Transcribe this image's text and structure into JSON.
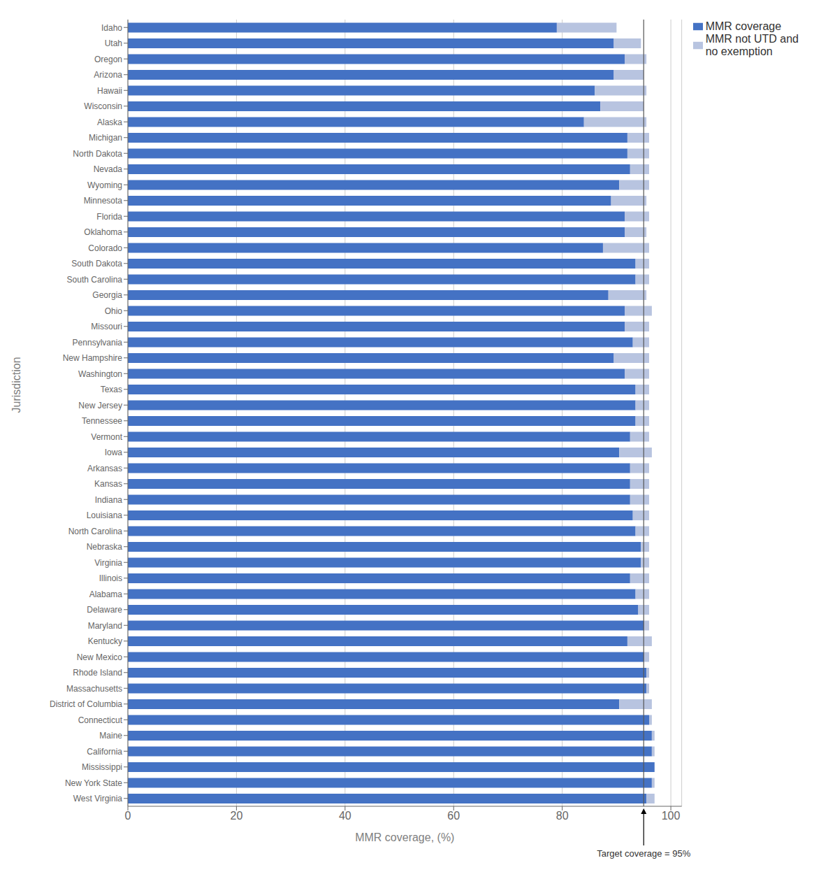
{
  "chart_data": {
    "type": "bar",
    "orientation": "horizontal",
    "stacked": true,
    "categories": [
      "Idaho",
      "Utah",
      "Oregon",
      "Arizona",
      "Hawaii",
      "Wisconsin",
      "Alaska",
      "Michigan",
      "North Dakota",
      "Nevada",
      "Wyoming",
      "Minnesota",
      "Florida",
      "Oklahoma",
      "Colorado",
      "South Dakota",
      "South Carolina",
      "Georgia",
      "Ohio",
      "Missouri",
      "Pennsylvania",
      "New Hampshire",
      "Washington",
      "Texas",
      "New Jersey",
      "Tennessee",
      "Vermont",
      "Iowa",
      "Arkansas",
      "Kansas",
      "Indiana",
      "Louisiana",
      "North Carolina",
      "Nebraska",
      "Virginia",
      "Illinois",
      "Alabama",
      "Delaware",
      "Maryland",
      "Kentucky",
      "New Mexico",
      "Rhode Island",
      "Massachusetts",
      "District of Columbia",
      "Connecticut",
      "Maine",
      "California",
      "Mississippi",
      "New York State",
      "West Virginia"
    ],
    "series": [
      {
        "name": "MMR coverage",
        "color": "#4472c4",
        "values": [
          79.0,
          89.5,
          91.5,
          89.5,
          86.0,
          87.0,
          84.0,
          92.0,
          92.0,
          92.5,
          90.5,
          89.0,
          91.5,
          91.5,
          87.5,
          93.5,
          93.5,
          88.5,
          91.5,
          91.5,
          93.0,
          89.5,
          91.5,
          93.5,
          93.5,
          93.5,
          92.5,
          90.5,
          92.5,
          92.5,
          92.5,
          93.0,
          93.5,
          94.5,
          94.5,
          92.5,
          93.5,
          94.0,
          95.0,
          92.0,
          95.0,
          95.5,
          95.5,
          90.5,
          96.0,
          96.5,
          96.5,
          97.0,
          96.5,
          95.5
        ]
      },
      {
        "name": "MMR not UTD and\nno exemption",
        "color": "#b8c4e0",
        "values": [
          11.0,
          5.0,
          4.0,
          5.5,
          9.5,
          8.0,
          11.5,
          4.0,
          4.0,
          3.5,
          5.5,
          6.5,
          4.5,
          4.0,
          8.5,
          2.5,
          2.5,
          7.0,
          5.0,
          4.5,
          3.0,
          6.5,
          4.5,
          2.5,
          2.5,
          2.5,
          3.5,
          6.0,
          3.5,
          3.5,
          3.5,
          3.0,
          2.5,
          1.5,
          1.5,
          3.5,
          2.5,
          2.0,
          1.0,
          4.5,
          1.0,
          0.5,
          0.5,
          6.0,
          0.5,
          0.5,
          0.5,
          0.0,
          0.5,
          1.5
        ]
      }
    ],
    "xlabel": "MMR coverage, (%)",
    "ylabel": "Jurisdiction",
    "xlim": [
      0,
      102
    ],
    "xticks": [
      0,
      20,
      40,
      60,
      80,
      100
    ],
    "grid": true,
    "legend": "upper right",
    "annotations": [
      {
        "text": "Target coverage = 95%",
        "x": 95
      }
    ]
  }
}
